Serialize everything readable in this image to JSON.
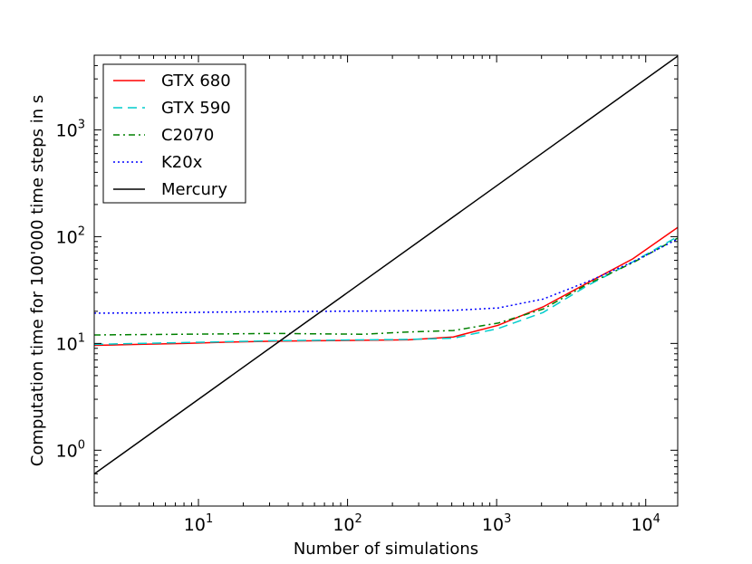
{
  "chart_data": {
    "type": "line",
    "title": "",
    "xlabel": "Number of simulations",
    "ylabel": "Computation time for 100'000 time steps in s",
    "xscale": "log",
    "yscale": "log",
    "xlim": [
      2,
      16384
    ],
    "ylim": [
      0.3,
      5000
    ],
    "grid": false,
    "legend_position": "top-left",
    "x_ticks": [
      {
        "value": 10,
        "base": "10",
        "exp": "1"
      },
      {
        "value": 100,
        "base": "10",
        "exp": "2"
      },
      {
        "value": 1000,
        "base": "10",
        "exp": "3"
      },
      {
        "value": 10000,
        "base": "10",
        "exp": "4"
      }
    ],
    "y_ticks": [
      {
        "value": 1,
        "base": "10",
        "exp": "0"
      },
      {
        "value": 10,
        "base": "10",
        "exp": "1"
      },
      {
        "value": 100,
        "base": "10",
        "exp": "2"
      },
      {
        "value": 1000,
        "base": "10",
        "exp": "3"
      }
    ],
    "series": [
      {
        "name": "GTX 680",
        "color": "#ff0000",
        "dash": "solid",
        "x": [
          2,
          4,
          8,
          16,
          32,
          64,
          128,
          256,
          512,
          1024,
          2048,
          4096,
          8192,
          16384
        ],
        "y": [
          9.6,
          9.8,
          10.0,
          10.3,
          10.5,
          10.6,
          10.7,
          10.8,
          11.5,
          14.8,
          22.0,
          37.0,
          62.0,
          122.0
        ]
      },
      {
        "name": "GTX 590",
        "color": "#00cccc",
        "dash": "dashed",
        "x": [
          2,
          4,
          8,
          16,
          32,
          64,
          128,
          256,
          512,
          1024,
          2048,
          4096,
          8192,
          16384
        ],
        "y": [
          9.8,
          10.0,
          10.2,
          10.4,
          10.6,
          10.7,
          10.8,
          10.9,
          11.2,
          13.8,
          19.5,
          35.0,
          58.0,
          100.0
        ]
      },
      {
        "name": "C2070",
        "color": "#008000",
        "dash": "dashdot",
        "x": [
          2,
          4,
          8,
          16,
          32,
          64,
          128,
          256,
          512,
          1024,
          2048,
          4096,
          8192,
          16384
        ],
        "y": [
          12.0,
          12.1,
          12.2,
          12.3,
          12.4,
          12.3,
          12.2,
          12.8,
          13.2,
          15.5,
          21.0,
          36.0,
          57.0,
          97.0
        ]
      },
      {
        "name": "K20x",
        "color": "#0000ff",
        "dash": "dotted",
        "x": [
          2,
          4,
          8,
          16,
          32,
          64,
          128,
          256,
          512,
          1024,
          2048,
          4096,
          8192,
          16384
        ],
        "y": [
          19.2,
          19.3,
          19.5,
          19.7,
          19.8,
          20.0,
          20.1,
          20.2,
          20.4,
          21.5,
          26.0,
          38.0,
          58.0,
          95.0
        ]
      },
      {
        "name": "Mercury",
        "color": "#000000",
        "dash": "solid",
        "x": [
          2,
          16384
        ],
        "y": [
          0.6,
          4900
        ]
      }
    ]
  }
}
